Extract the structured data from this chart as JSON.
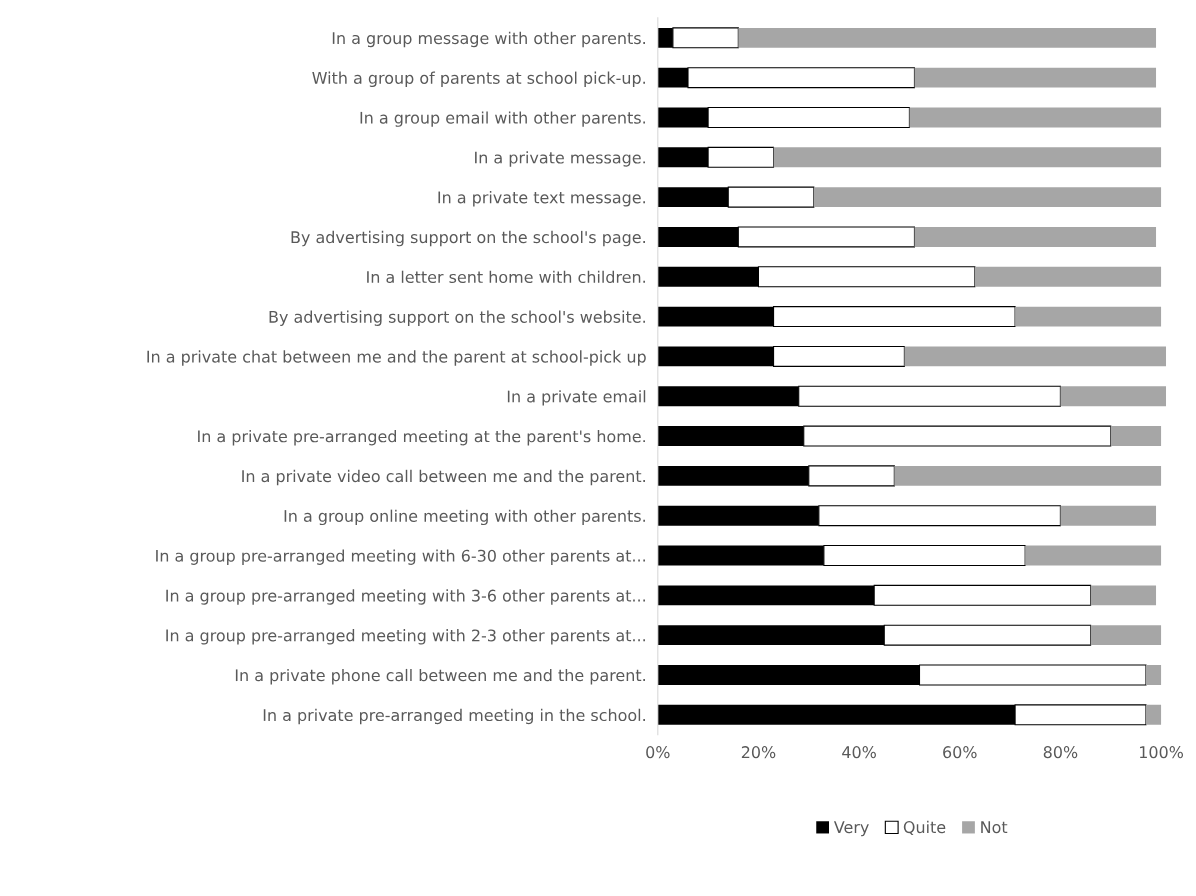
{
  "chart_data": {
    "type": "bar",
    "orientation": "horizontal",
    "stacked": true,
    "categories": [
      "In a group message with other parents.",
      "With a group of parents at school pick-up.",
      "In a group email with other parents.",
      "In a private message.",
      "In a private text message.",
      "By advertising support on the school's page.",
      "In a letter sent home with children.",
      "By advertising support on the school's website.",
      "In a private chat between me and the parent at school-pick up",
      "In a private email",
      "In a private pre-arranged meeting at the parent's home.",
      "In a private video call between me and the parent.",
      "In a group online meeting with other parents.",
      "In a group pre-arranged meeting with 6-30 other parents at...",
      "In a group pre-arranged meeting with 3-6 other parents at...",
      "In a group pre-arranged meeting with 2-3 other parents at...",
      "In a private phone call between me and the parent.",
      "In a private pre-arranged meeting in the school."
    ],
    "series": [
      {
        "name": "Very",
        "color": "#000000",
        "values": [
          3,
          6,
          10,
          10,
          14,
          16,
          20,
          23,
          23,
          28,
          29,
          30,
          32,
          33,
          43,
          45,
          52,
          71
        ]
      },
      {
        "name": "Quite",
        "color": "#ffffff",
        "values": [
          13,
          45,
          40,
          13,
          17,
          35,
          43,
          48,
          26,
          52,
          61,
          17,
          48,
          40,
          43,
          41,
          45,
          26
        ]
      },
      {
        "name": "Not",
        "color": "#a6a6a6",
        "values": [
          83,
          48,
          50,
          77,
          69,
          48,
          37,
          29,
          52,
          21,
          10,
          53,
          19,
          27,
          13,
          14,
          3,
          3
        ]
      }
    ],
    "xlim": [
      0,
      101
    ],
    "xticks": [
      {
        "value": 0,
        "label": "0%"
      },
      {
        "value": 20,
        "label": "20%"
      },
      {
        "value": 40,
        "label": "40%"
      },
      {
        "value": 60,
        "label": "60%"
      },
      {
        "value": 80,
        "label": "80%"
      },
      {
        "value": 100,
        "label": "100%"
      }
    ],
    "grid": false,
    "legend": "bottom"
  }
}
